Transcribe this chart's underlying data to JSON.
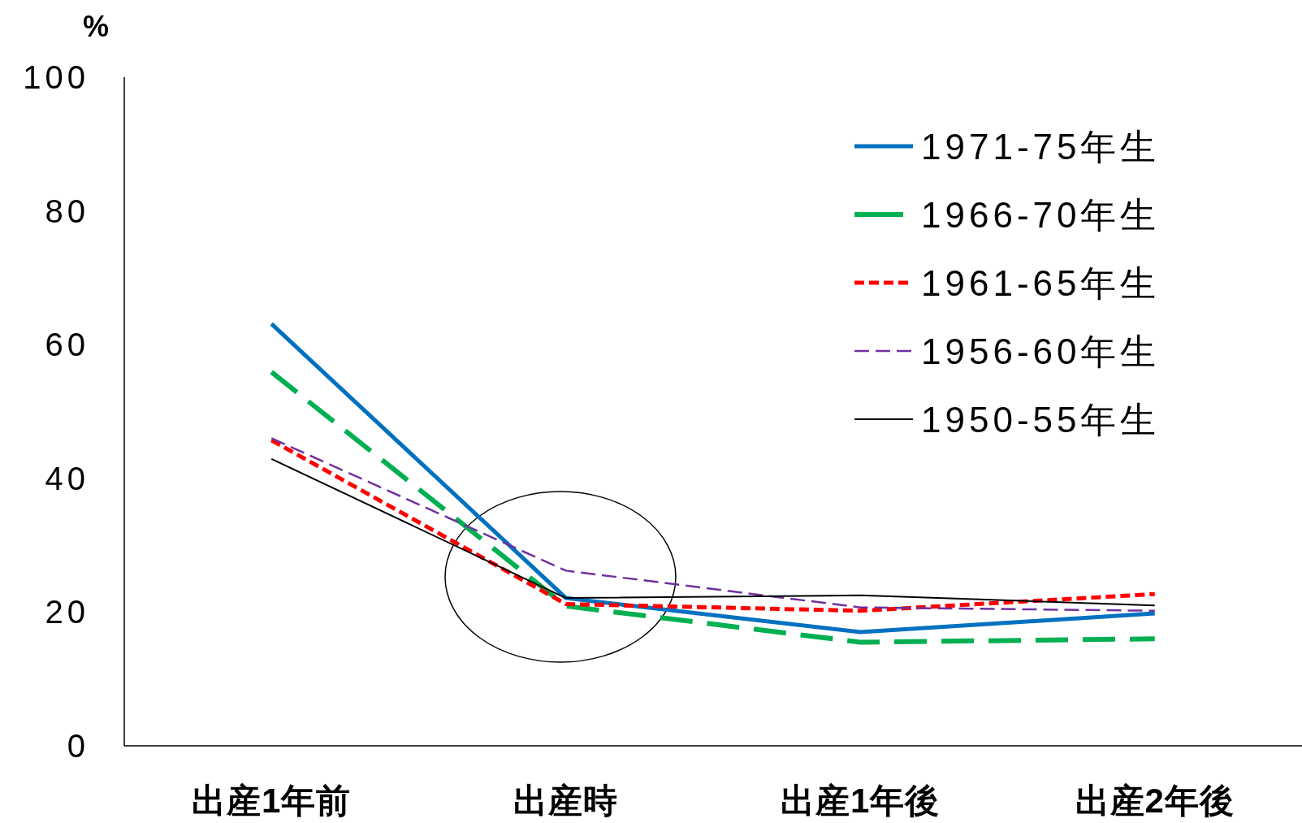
{
  "chart_data": {
    "type": "line",
    "ylabel": "%",
    "categories": [
      "出産1年前",
      "出産時",
      "出産1年後",
      "出産2年後"
    ],
    "series": [
      {
        "name": "1971-75年生",
        "color": "#0070c0",
        "line_style": "solid",
        "values": [
          63.1,
          22.1,
          17.0,
          19.8
        ]
      },
      {
        "name": "1966-70年生",
        "color": "#00b050",
        "line_style": "dashed",
        "values": [
          55.9,
          20.9,
          15.5,
          16.0
        ]
      },
      {
        "name": "1961-65年生",
        "color": "#ff0000",
        "line_style": "dotted",
        "values": [
          45.7,
          21.2,
          20.2,
          22.7
        ]
      },
      {
        "name": "1956-60年生",
        "color": "#7030a0",
        "line_style": "dashed",
        "values": [
          46.0,
          26.2,
          20.7,
          20.2
        ]
      },
      {
        "name": "1950-55年生",
        "color": "#000000",
        "line_style": "solid",
        "values": [
          42.9,
          22.1,
          22.5,
          21.0
        ]
      }
    ],
    "ylim": [
      0,
      100
    ],
    "yticks": [
      0,
      20,
      40,
      60,
      80,
      100
    ],
    "grid": false,
    "legend": "top right",
    "marker": "none"
  }
}
